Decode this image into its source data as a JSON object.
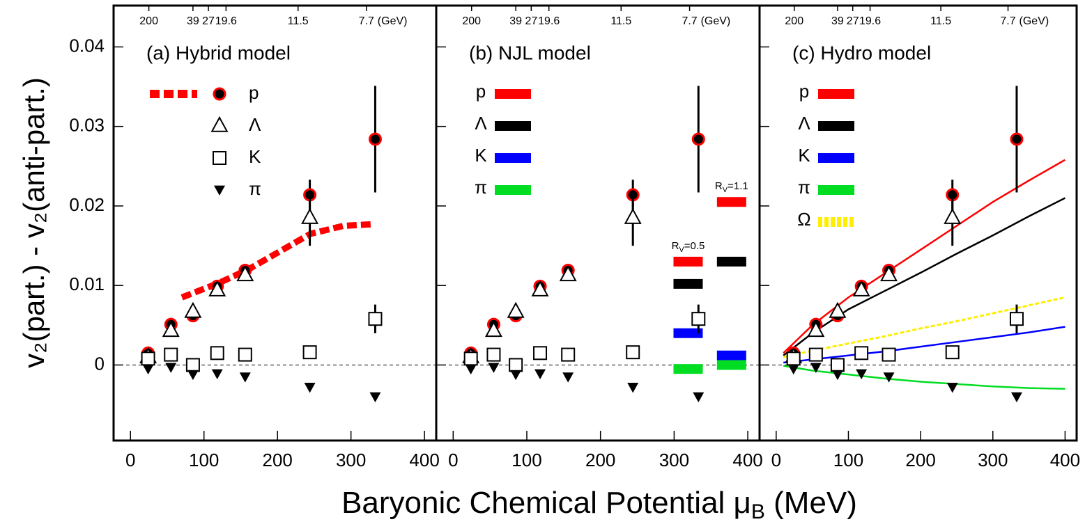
{
  "chart_data": {
    "type": "scatter",
    "ylabel": "v₂(part.) - v₂(anti-part.)",
    "xlabel": [
      "Baryonic Chemical Potential μ",
      "B",
      " (MeV)"
    ],
    "xlim": [
      -23,
      416
    ],
    "xticks": [
      0,
      100,
      200,
      300,
      400
    ],
    "ylim": [
      -0.0095,
      0.0452
    ],
    "yticks": [
      0,
      0.01,
      0.02,
      0.03,
      0.04
    ],
    "reference_line": 0,
    "top_ticks": [
      {
        "value": 25,
        "label": "200"
      },
      {
        "value": 85,
        "label": "39"
      },
      {
        "value": 106,
        "label": "27"
      },
      {
        "value": 130,
        "label": "19.6"
      },
      {
        "value": 228,
        "label": "11.5"
      },
      {
        "value": 321,
        "label": "7.7"
      }
    ],
    "top_unit": "(GeV)",
    "x": [
      24,
      55,
      85,
      118,
      156,
      244,
      333
    ],
    "series": [
      {
        "name": "p",
        "marker": "circle",
        "values": [
          0.0015,
          0.0051,
          0.0062,
          0.0099,
          0.0119,
          0.0214,
          0.0284
        ],
        "errors": [
          0.0003,
          0.0003,
          0.0003,
          0.0003,
          0.0003,
          0.0019,
          0.0067
        ]
      },
      {
        "name": "Λ",
        "marker": "triangle",
        "values": [
          0.001,
          0.0043,
          0.0067,
          0.0094,
          0.0113,
          0.0185,
          null
        ],
        "errors": [
          0.0003,
          0.0004,
          0.0004,
          0.0004,
          0.0004,
          0.0035,
          null
        ]
      },
      {
        "name": "K",
        "marker": "square",
        "values": [
          0.0008,
          0.0013,
          0.0,
          0.0015,
          0.0013,
          0.0016,
          0.0058
        ],
        "errors": [
          0.0002,
          0.0002,
          0.0002,
          0.0002,
          0.0002,
          0.0003,
          0.0018
        ]
      },
      {
        "name": "π",
        "marker": "triangle-down",
        "values": [
          -0.0005,
          -0.0003,
          -0.0012,
          -0.0011,
          -0.0015,
          -0.0028,
          -0.004
        ],
        "errors": [
          0.0001,
          0.0001,
          0.0001,
          0.0001,
          0.0001,
          0.0002,
          0.0003
        ]
      }
    ],
    "panels": [
      {
        "title": "(a) Hybrid model",
        "type": "line",
        "models": [
          {
            "name": "p",
            "color": "#ff0000",
            "style": "dashed",
            "x": [
              70,
              120,
              160,
              245,
              290,
              330
            ],
            "values": [
              0.0085,
              0.0103,
              0.012,
              0.0165,
              0.0175,
              0.0177
            ]
          }
        ]
      },
      {
        "title": "(b) NJL model",
        "type": "bar",
        "legend": [
          {
            "name": "p",
            "color": "#ff0000"
          },
          {
            "name": "Λ",
            "color": "#000000"
          },
          {
            "name": "K",
            "color": "#0000ff"
          },
          {
            "name": "π",
            "color": "#00dd22"
          }
        ],
        "groups": [
          {
            "label": [
              "R",
              "V",
              "=0.5"
            ],
            "x": 319,
            "values": [
              0.013,
              0.0102,
              0.004,
              -0.0005
            ]
          },
          {
            "label": [
              "R",
              "V",
              "=1.1"
            ],
            "x": 378,
            "values": [
              0.0205,
              0.013,
              0.0012,
              0.0
            ]
          }
        ]
      },
      {
        "title": "(c) Hydro model",
        "type": "line",
        "models": [
          {
            "name": "p",
            "color": "#ff0000",
            "style": "solid",
            "x": [
              10,
              50,
              100,
              150,
              200,
              250,
              300,
              350,
              400
            ],
            "values": [
              0.0015,
              0.005,
              0.0085,
              0.0115,
              0.0145,
              0.0175,
              0.0205,
              0.0232,
              0.0258
            ]
          },
          {
            "name": "Λ",
            "color": "#000000",
            "style": "solid",
            "x": [
              10,
              50,
              100,
              150,
              200,
              250,
              300,
              350,
              400
            ],
            "values": [
              0.0012,
              0.004,
              0.007,
              0.0093,
              0.0116,
              0.014,
              0.0163,
              0.0187,
              0.021
            ]
          },
          {
            "name": "K",
            "color": "#0000ff",
            "style": "solid",
            "x": [
              10,
              50,
              100,
              150,
              200,
              250,
              300,
              350,
              400
            ],
            "values": [
              0.0003,
              0.0007,
              0.0012,
              0.0017,
              0.0023,
              0.0029,
              0.0035,
              0.0041,
              0.0048
            ]
          },
          {
            "name": "π",
            "color": "#00dd22",
            "style": "solid",
            "x": [
              10,
              50,
              100,
              150,
              200,
              250,
              300,
              350,
              400
            ],
            "values": [
              -0.0001,
              -0.0007,
              -0.0012,
              -0.0017,
              -0.0021,
              -0.0024,
              -0.0027,
              -0.0029,
              -0.003
            ]
          },
          {
            "name": "Ω",
            "color": "#ffee00",
            "style": "dashed",
            "x": [
              10,
              50,
              100,
              150,
              200,
              250,
              300,
              350,
              400
            ],
            "values": [
              0.001,
              0.0018,
              0.0027,
              0.0036,
              0.0046,
              0.0055,
              0.0065,
              0.0075,
              0.0085
            ]
          }
        ]
      }
    ]
  }
}
